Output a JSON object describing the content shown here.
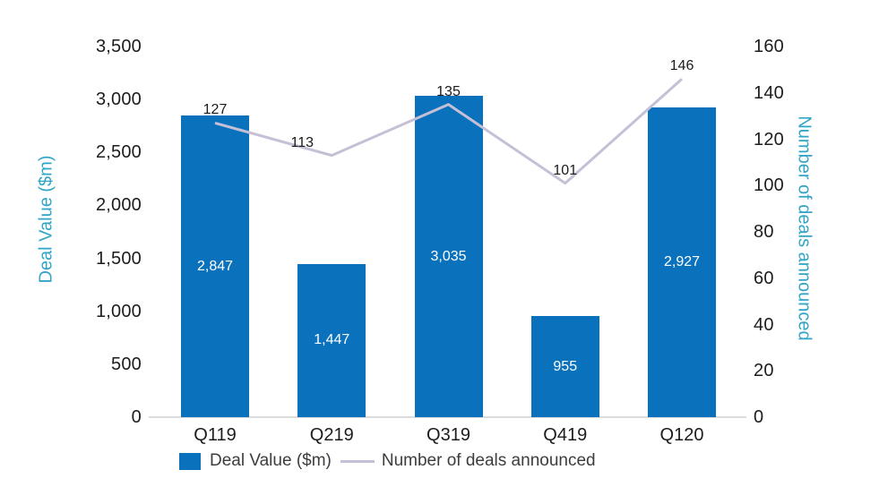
{
  "chart_data": {
    "type": "bar",
    "subtype": "combo-bar-line",
    "categories": [
      "Q119",
      "Q219",
      "Q319",
      "Q419",
      "Q120"
    ],
    "series": [
      {
        "name": "Deal Value ($m)",
        "render": "bar",
        "axis": "left",
        "values": [
          2847,
          1447,
          3035,
          955,
          2927
        ],
        "value_labels": [
          "2,847",
          "1,447",
          "3,035",
          "955",
          "2,927"
        ],
        "color": "#0a72bd",
        "label_color": "#ffffff"
      },
      {
        "name": "Number of deals announced",
        "render": "line",
        "axis": "right",
        "values": [
          127,
          113,
          135,
          101,
          146
        ],
        "value_labels": [
          "127",
          "113",
          "135",
          "101",
          "146"
        ],
        "color": "#c6c0d7",
        "label_color": "#1b1b1b"
      }
    ],
    "left_axis": {
      "title": "Deal Value ($m)",
      "min": 0,
      "max": 3500,
      "step": 500,
      "tick_labels": [
        "0",
        "500",
        "1,000",
        "1,500",
        "2,000",
        "2,500",
        "3,000",
        "3,500"
      ]
    },
    "right_axis": {
      "title": "Number of deals announced",
      "min": 0,
      "max": 160,
      "step": 20,
      "tick_labels": [
        "0",
        "20",
        "40",
        "60",
        "80",
        "100",
        "120",
        "140",
        "160"
      ]
    },
    "legend": [
      {
        "label": "Deal Value ($m)",
        "swatch": "square",
        "color": "#0a72bd"
      },
      {
        "label": "Number of deals announced",
        "swatch": "line",
        "color": "#c6c0d7"
      }
    ],
    "grid": false,
    "legend_position": "bottom",
    "colors": {
      "axis_title": "#31a5c6",
      "tick_text": "#1c1c1c",
      "baseline": "#dcdcdc",
      "background": "#ffffff"
    }
  }
}
